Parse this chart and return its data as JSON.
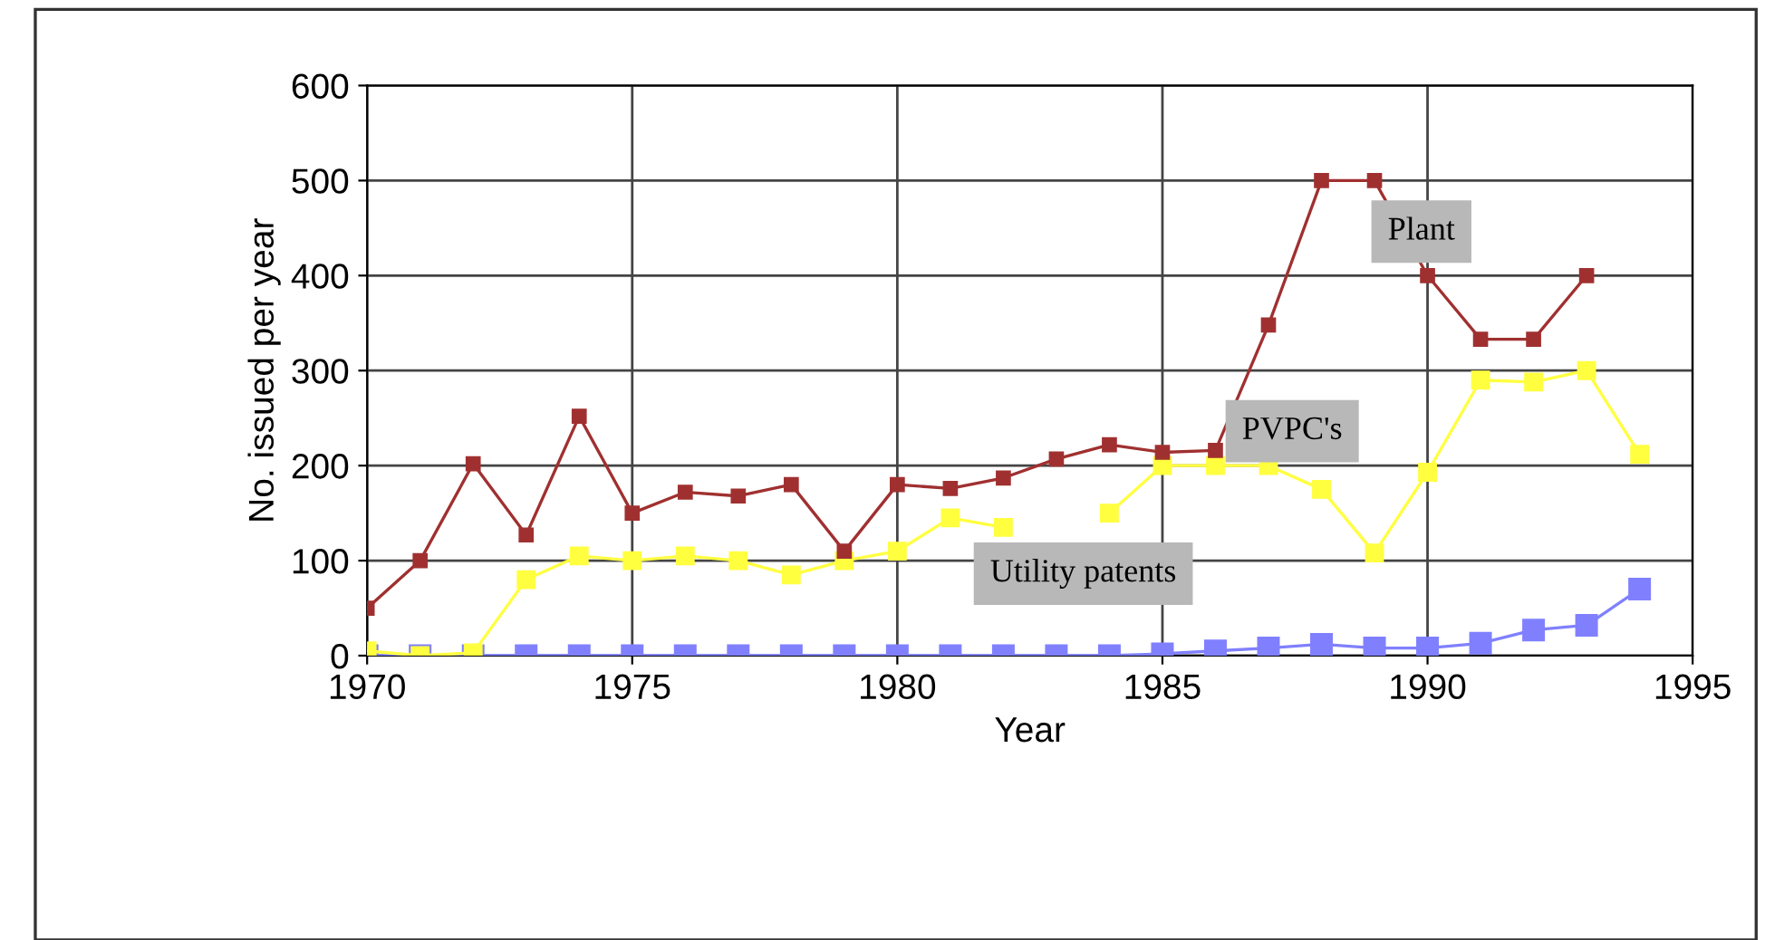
{
  "chart_data": {
    "type": "line",
    "xlabel": "Year",
    "ylabel": "No. issued per year",
    "x": [
      1970,
      1971,
      1972,
      1973,
      1974,
      1975,
      1976,
      1977,
      1978,
      1979,
      1980,
      1981,
      1982,
      1983,
      1984,
      1985,
      1986,
      1987,
      1988,
      1989,
      1990,
      1991,
      1992,
      1993,
      1994
    ],
    "series": [
      {
        "color": "#a03030",
        "values": [
          50,
          100,
          202,
          127,
          252,
          150,
          172,
          168,
          180,
          110,
          180,
          176,
          187,
          207,
          222,
          214,
          216,
          348,
          500,
          500,
          400,
          333,
          333,
          400,
          null
        ]
      },
      {
        "color": "#ffff40",
        "values": [
          5,
          0,
          3,
          80,
          105,
          100,
          105,
          100,
          85,
          100,
          110,
          145,
          135,
          null,
          150,
          200,
          200,
          200,
          175,
          108,
          193,
          290,
          288,
          300,
          212
        ]
      },
      {
        "color": "#8080ff",
        "values": [
          0,
          0,
          0,
          0,
          0,
          0,
          0,
          0,
          0,
          0,
          0,
          0,
          0,
          0,
          0,
          2,
          5,
          8,
          12,
          8,
          8,
          13,
          27,
          32,
          70
        ]
      }
    ],
    "xlim": [
      1970,
      1995
    ],
    "xticks": [
      1970,
      1975,
      1980,
      1985,
      1990,
      1995
    ],
    "ylim": [
      0,
      600
    ],
    "yticks": [
      0,
      100,
      200,
      300,
      400,
      500,
      600
    ],
    "annotations": [
      "Plant",
      "PVPC's",
      "Utility patents"
    ],
    "grid": true,
    "marker": "square",
    "line_style": "solid",
    "legend": false
  }
}
